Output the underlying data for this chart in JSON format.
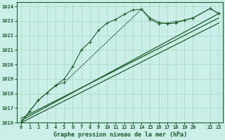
{
  "title": "Graphe pression niveau de la mer (hPa)",
  "bg_color": "#cceee8",
  "grid_color": "#aaddcc",
  "line_color": "#1a5c2a",
  "xlim": [
    -0.5,
    23.5
  ],
  "ylim": [
    1016,
    1024.3
  ],
  "yticks": [
    1016,
    1017,
    1018,
    1019,
    1020,
    1021,
    1022,
    1023,
    1024
  ],
  "xticks": [
    0,
    1,
    2,
    3,
    4,
    5,
    6,
    7,
    8,
    9,
    10,
    11,
    12,
    13,
    14,
    15,
    16,
    17,
    18,
    19,
    20,
    22,
    23
  ],
  "xtick_labels": [
    "0",
    "1",
    "2",
    "3",
    "4",
    "5",
    "6",
    "7",
    "8",
    "9",
    "10",
    "11",
    "12",
    "13",
    "14",
    "15",
    "16",
    "17",
    "18",
    "19",
    "20",
    "22",
    "23"
  ],
  "series1_x": [
    0,
    1,
    2,
    3,
    4,
    5,
    6,
    7,
    8,
    9,
    10,
    11,
    12,
    13,
    14,
    15,
    16,
    17,
    18,
    19,
    20,
    22,
    23
  ],
  "series1_y": [
    1016.0,
    1016.8,
    1017.55,
    1018.05,
    1018.55,
    1019.0,
    1019.85,
    1021.0,
    1021.55,
    1022.35,
    1022.85,
    1023.1,
    1023.45,
    1023.75,
    1023.8,
    1023.2,
    1022.9,
    1022.8,
    1022.85,
    1023.05,
    1023.2,
    1023.85,
    1023.5
  ],
  "series2_x": [
    0,
    1,
    2,
    3,
    4,
    5,
    14,
    15,
    16,
    17,
    18,
    19,
    20,
    22,
    23
  ],
  "series2_y": [
    1016.0,
    1016.8,
    1017.55,
    1018.05,
    1018.55,
    1018.75,
    1023.8,
    1023.1,
    1022.8,
    1022.85,
    1022.95,
    1023.05,
    1023.2,
    1023.85,
    1023.5
  ],
  "line1_x": [
    0,
    23
  ],
  "line1_y": [
    1016.3,
    1023.2
  ],
  "line2_x": [
    0,
    23
  ],
  "line2_y": [
    1016.0,
    1022.85
  ],
  "line3_x": [
    0,
    23
  ],
  "line3_y": [
    1016.15,
    1023.5
  ]
}
